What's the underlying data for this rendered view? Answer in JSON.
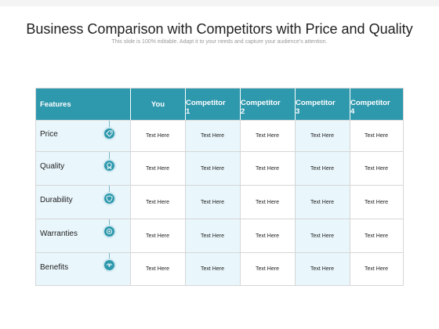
{
  "title": "Business Comparison with Competitors with Price and Quality",
  "subtitle": "This slide is 100% editable. Adapt it to your needs and capture your audience's attention.",
  "table": {
    "headers": [
      "Features",
      "You",
      "Competitor 1",
      "Competitor 2",
      "Competitor 3",
      "Competitor 4"
    ],
    "header_lines": [
      [
        "Features"
      ],
      [
        "You"
      ],
      [
        "Competitor",
        "1"
      ],
      [
        "Competitor",
        "2"
      ],
      [
        "Competitor",
        "3"
      ],
      [
        "Competitor",
        "4"
      ]
    ],
    "rows": [
      {
        "feature": "Price",
        "icon": "price-tag-icon",
        "cells": [
          "Text Here",
          "Text Here",
          "Text Here",
          "Text Here",
          "Text Here"
        ]
      },
      {
        "feature": "Quality",
        "icon": "quality-badge-icon",
        "cells": [
          "Text Here",
          "Text Here",
          "Text Here",
          "Text Here",
          "Text Here"
        ]
      },
      {
        "feature": "Durability",
        "icon": "shield-icon",
        "cells": [
          "Text Here",
          "Text Here",
          "Text Here",
          "Text Here",
          "Text Here"
        ]
      },
      {
        "feature": "Warranties",
        "icon": "certificate-icon",
        "cells": [
          "Text Here",
          "Text Here",
          "Text Here",
          "Text Here",
          "Text Here"
        ]
      },
      {
        "feature": "Benefits",
        "icon": "handshake-icon",
        "cells": [
          "Text Here",
          "Text Here",
          "Text Here",
          "Text Here",
          "Text Here"
        ]
      }
    ]
  },
  "colors": {
    "header": "#2e98ad",
    "tint": "#e9f6fb",
    "border": "#d6d6d6"
  }
}
